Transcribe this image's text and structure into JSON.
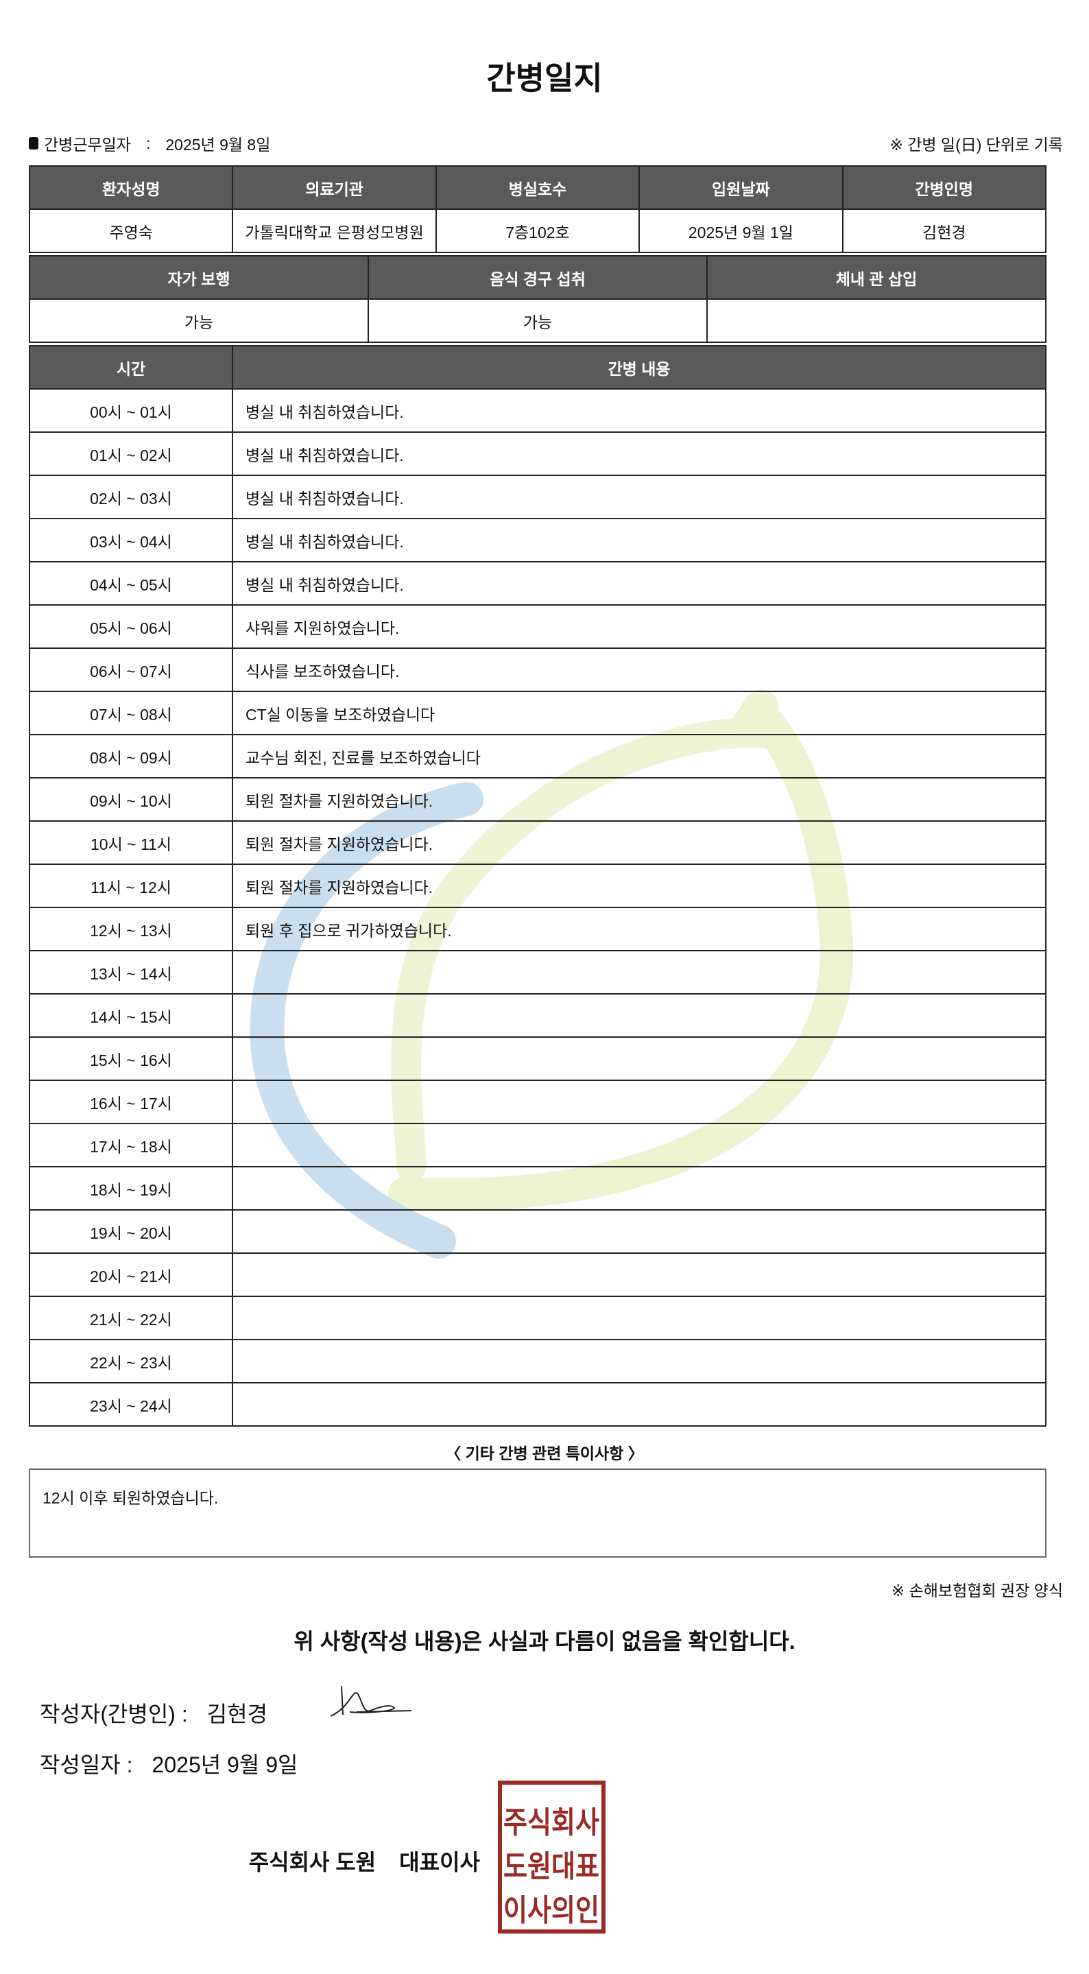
{
  "title": "간병일지",
  "work_date_label": "간병근무일자",
  "work_date_sep": ":",
  "work_date": "2025년 9월 8일",
  "unit_note": "※ 간병 일(日) 단위로 기록",
  "info_table": {
    "headers": [
      "환자성명",
      "의료기관",
      "병실호수",
      "입원날짜",
      "간병인명"
    ],
    "values": [
      "주영숙",
      "가톨릭대학교 은평성모병원",
      "7층102호",
      "2025년 9월 1일",
      "김현경"
    ]
  },
  "status_table": {
    "headers": [
      "자가 보행",
      "음식 경구 섭취",
      "체내 관 삽입"
    ],
    "values": [
      "가능",
      "가능",
      ""
    ]
  },
  "log_table": {
    "headers": [
      "시간",
      "간병 내용"
    ],
    "rows": [
      [
        "00시 ~ 01시",
        "병실 내 취침하였습니다."
      ],
      [
        "01시 ~ 02시",
        "병실 내 취침하였습니다."
      ],
      [
        "02시 ~ 03시",
        "병실 내 취침하였습니다."
      ],
      [
        "03시 ~ 04시",
        "병실 내 취침하였습니다."
      ],
      [
        "04시 ~ 05시",
        "병실 내 취침하였습니다."
      ],
      [
        "05시 ~ 06시",
        "샤워를 지원하였습니다."
      ],
      [
        "06시 ~ 07시",
        "식사를 보조하였습니다."
      ],
      [
        "07시 ~ 08시",
        "CT실 이동을 보조하였습니다"
      ],
      [
        "08시 ~ 09시",
        "교수님 회진, 진료를 보조하였습니다"
      ],
      [
        "09시 ~ 10시",
        "퇴원 절차를 지원하였습니다."
      ],
      [
        "10시 ~ 11시",
        "퇴원 절차를 지원하였습니다."
      ],
      [
        "11시 ~ 12시",
        "퇴원 절차를 지원하였습니다."
      ],
      [
        "12시 ~ 13시",
        "퇴원 후 집으로 귀가하였습니다."
      ],
      [
        "13시 ~ 14시",
        ""
      ],
      [
        "14시 ~ 15시",
        ""
      ],
      [
        "15시 ~ 16시",
        ""
      ],
      [
        "16시 ~ 17시",
        ""
      ],
      [
        "17시 ~ 18시",
        ""
      ],
      [
        "18시 ~ 19시",
        ""
      ],
      [
        "19시 ~ 20시",
        ""
      ],
      [
        "20시 ~ 21시",
        ""
      ],
      [
        "21시 ~ 22시",
        ""
      ],
      [
        "22시 ~ 23시",
        ""
      ],
      [
        "23시 ~ 24시",
        ""
      ]
    ]
  },
  "special_title": "〈 기타 간병 관련 특이사항 〉",
  "special_notes": "12시 이후 퇴원하였습니다.",
  "association_note": "※ 손해보험협회 권장 양식",
  "confirm_text": "위 사항(작성 내용)은 사실과 다름이 없음을 확인합니다.",
  "writer_label": "작성자(간병인) :",
  "writer_name": "김현경",
  "written_date_label": "작성일자 :",
  "written_date": "2025년 9월 9일",
  "company_name": "주식회사 도원",
  "ceo_title": "대표이사",
  "stamp_text": [
    "주식회사",
    "도원대표",
    "이사의인"
  ],
  "colors": {
    "header_bg": "#5a5a5a",
    "stamp": "#9b2a26",
    "watermark_blue": "#c9dff0",
    "watermark_green": "#eef3d2"
  }
}
